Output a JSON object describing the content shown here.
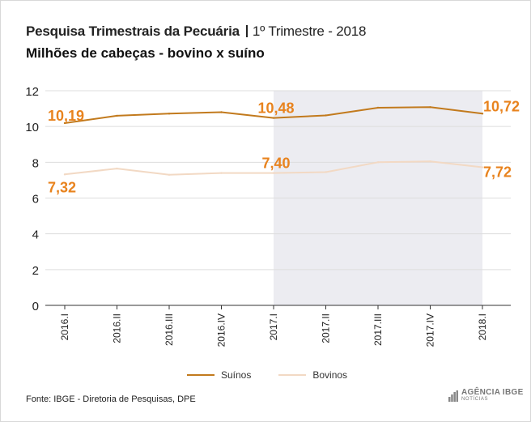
{
  "header": {
    "title": "Pesquisa Trimestrais da Pecuária",
    "period": "1º Trimestre - 2018",
    "subtitle": "Milhões de cabeças - bovino x suíno"
  },
  "footer": {
    "source": "Fonte: IBGE - Diretoria de Pesquisas, DPE",
    "logo_line1": "AGÊNCIA IBGE",
    "logo_line2": "NOTÍCIAS"
  },
  "colors": {
    "suinos": "#c27a1d",
    "bovinos": "#f2d9c4",
    "label": "#e8831e",
    "highlight": "#ececf1",
    "grid": "#dddddd"
  },
  "chart_data": {
    "type": "line",
    "categories": [
      "2016.I",
      "2016.II",
      "2016.III",
      "2016.IV",
      "2017.I",
      "2017.II",
      "2017.III",
      "2017.IV",
      "2018.I"
    ],
    "series": [
      {
        "name": "Suínos",
        "values": [
          10.19,
          10.6,
          10.72,
          10.8,
          10.48,
          10.62,
          11.05,
          11.08,
          10.72
        ]
      },
      {
        "name": "Bovinos",
        "values": [
          7.32,
          7.65,
          7.3,
          7.4,
          7.4,
          7.45,
          8.0,
          8.05,
          7.72
        ]
      }
    ],
    "data_labels": [
      {
        "series": 0,
        "index": 0,
        "text": "10,19"
      },
      {
        "series": 0,
        "index": 4,
        "text": "10,48"
      },
      {
        "series": 0,
        "index": 8,
        "text": "10,72"
      },
      {
        "series": 1,
        "index": 0,
        "text": "7,32"
      },
      {
        "series": 1,
        "index": 4,
        "text": "7,40"
      },
      {
        "series": 1,
        "index": 8,
        "text": "7,72"
      }
    ],
    "yticks": [
      0,
      2,
      4,
      6,
      8,
      10,
      12
    ],
    "ylim": [
      0,
      12
    ],
    "highlight_range": [
      "2017.I",
      "2018.I"
    ],
    "legend": [
      "Suínos",
      "Bovinos"
    ],
    "legend_position": "bottom",
    "grid": true
  }
}
